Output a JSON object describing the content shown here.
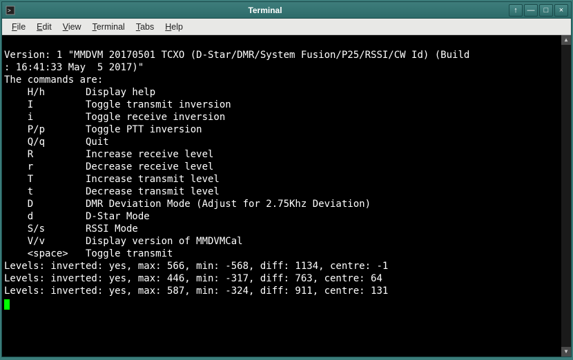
{
  "window": {
    "title": "Terminal",
    "controls": {
      "stick": "↑",
      "minimize": "—",
      "maximize": "□",
      "close": "×"
    }
  },
  "menubar": {
    "items": [
      {
        "accel": "F",
        "rest": "ile"
      },
      {
        "accel": "E",
        "rest": "dit"
      },
      {
        "accel": "V",
        "rest": "iew"
      },
      {
        "accel": "T",
        "rest": "erminal"
      },
      {
        "accel": "T",
        "rest": "abs",
        "prefix": ""
      },
      {
        "accel": "H",
        "rest": "elp"
      }
    ]
  },
  "terminal": {
    "version_line1": "Version: 1 \"MMDVM 20170501 TCXO (D-Star/DMR/System Fusion/P25/RSSI/CW Id) (Build",
    "version_line2": ": 16:41:33 May  5 2017)\"",
    "commands_header": "The commands are:",
    "commands": [
      {
        "key": "H/h",
        "desc": "Display help"
      },
      {
        "key": "I",
        "desc": "Toggle transmit inversion"
      },
      {
        "key": "i",
        "desc": "Toggle receive inversion"
      },
      {
        "key": "P/p",
        "desc": "Toggle PTT inversion"
      },
      {
        "key": "Q/q",
        "desc": "Quit"
      },
      {
        "key": "R",
        "desc": "Increase receive level"
      },
      {
        "key": "r",
        "desc": "Decrease receive level"
      },
      {
        "key": "T",
        "desc": "Increase transmit level"
      },
      {
        "key": "t",
        "desc": "Decrease transmit level"
      },
      {
        "key": "D",
        "desc": "DMR Deviation Mode (Adjust for 2.75Khz Deviation)"
      },
      {
        "key": "d",
        "desc": "D-Star Mode"
      },
      {
        "key": "S/s",
        "desc": "RSSI Mode"
      },
      {
        "key": "V/v",
        "desc": "Display version of MMDVMCal"
      },
      {
        "key": "<space>",
        "desc": "Toggle transmit"
      }
    ],
    "levels": [
      "Levels: inverted: yes, max: 566, min: -568, diff: 1134, centre: -1",
      "Levels: inverted: yes, max: 446, min: -317, diff: 763, centre: 64",
      "Levels: inverted: yes, max: 587, min: -324, diff: 911, centre: 131"
    ]
  },
  "colors": {
    "titlebar_bg_top": "#3e7d7b",
    "titlebar_bg_bottom": "#2d6b6a",
    "menubar_bg": "#e8e8e6",
    "terminal_bg": "#000000",
    "terminal_fg": "#ffffff",
    "cursor": "#00ff00",
    "desktop_bg": "#3b7c7a"
  }
}
